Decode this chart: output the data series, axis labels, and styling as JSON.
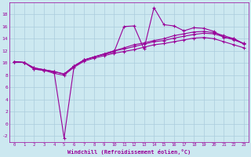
{
  "xlabel": "Windchill (Refroidissement éolien,°C)",
  "background_color": "#cce8f0",
  "grid_color": "#aaccdd",
  "line_color": "#990099",
  "x_min": -0.5,
  "x_max": 23.5,
  "y_min": -3,
  "y_max": 20,
  "series": [
    [
      10.2,
      10.1,
      9.0,
      8.8,
      8.5,
      -2.3,
      9.5,
      10.5,
      11.0,
      11.4,
      11.8,
      16.0,
      16.1,
      12.3,
      19.1,
      16.3,
      16.1,
      15.3,
      15.8,
      15.7,
      15.2,
      14.2,
      14.0,
      13.1
    ],
    [
      10.2,
      10.1,
      9.2,
      8.9,
      8.6,
      8.2,
      9.5,
      10.5,
      11.0,
      11.5,
      12.0,
      12.5,
      13.0,
      13.3,
      13.7,
      14.0,
      14.5,
      14.8,
      15.1,
      15.2,
      15.0,
      14.5,
      14.0,
      13.2
    ],
    [
      10.2,
      10.1,
      9.2,
      8.9,
      8.6,
      8.2,
      9.5,
      10.5,
      11.0,
      11.5,
      12.0,
      12.3,
      12.7,
      13.1,
      13.5,
      13.7,
      14.1,
      14.4,
      14.7,
      14.9,
      14.8,
      14.3,
      13.8,
      13.2
    ],
    [
      10.2,
      10.1,
      9.0,
      8.8,
      8.3,
      8.0,
      9.3,
      10.3,
      10.8,
      11.2,
      11.6,
      11.9,
      12.2,
      12.6,
      13.0,
      13.2,
      13.5,
      13.8,
      14.1,
      14.2,
      14.0,
      13.5,
      13.0,
      12.5
    ]
  ],
  "yticks": [
    -2,
    0,
    2,
    4,
    6,
    8,
    10,
    12,
    14,
    16,
    18
  ],
  "xtick_labels": [
    "0",
    "1",
    "2",
    "3",
    "4",
    "5",
    "6",
    "7",
    "8",
    "9",
    "10",
    "11",
    "12",
    "13",
    "14",
    "15",
    "16",
    "17",
    "18",
    "19",
    "20",
    "21",
    "22",
    "23"
  ],
  "marker": "+",
  "marker_size": 3,
  "line_width": 0.8
}
